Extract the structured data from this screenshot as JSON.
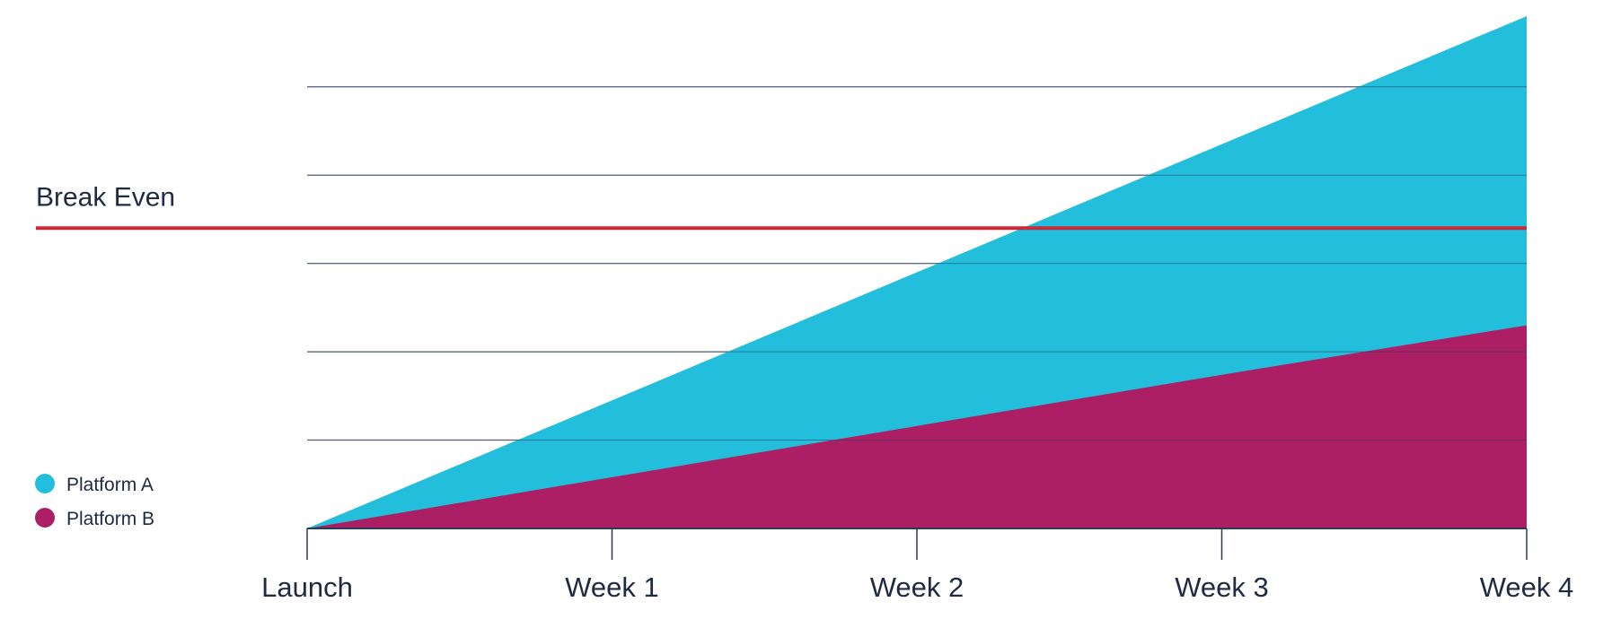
{
  "chart_data": {
    "type": "area",
    "categories": [
      "Launch",
      "Week 1",
      "Week 2",
      "Week 3",
      "Week 4"
    ],
    "series": [
      {
        "name": "Platform A",
        "color": "#22bedb",
        "values": [
          0,
          1.45,
          2.9,
          4.35,
          5.8
        ]
      },
      {
        "name": "Platform B",
        "color": "#ac1f64",
        "values": [
          0,
          0.58,
          1.16,
          1.74,
          2.3
        ]
      }
    ],
    "gridlines": [
      1,
      2,
      3,
      4,
      5
    ],
    "ylim": [
      0,
      5.8
    ],
    "grid": true,
    "legend_position": "bottom-left",
    "break_even": {
      "label": "Break Even",
      "value": 3.4,
      "color": "#cc2936"
    },
    "title": "",
    "xlabel": "",
    "ylabel": ""
  }
}
